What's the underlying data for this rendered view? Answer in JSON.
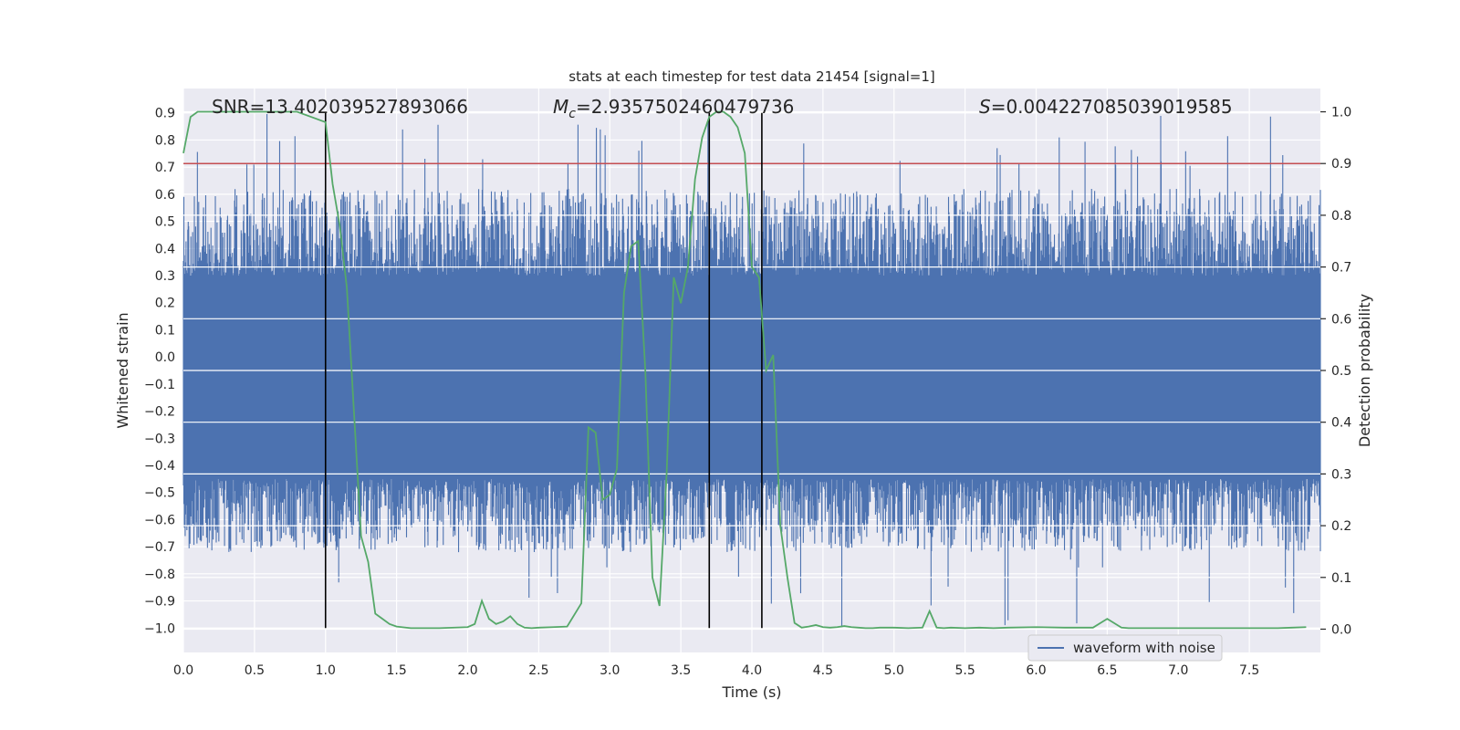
{
  "chart_data": {
    "type": "line",
    "title": "stats at each timestep for test data 21454 [signal=1]",
    "xlabel": "Time (s)",
    "ylabel": "Whitened strain",
    "y2label": "Detection probability",
    "xlim": [
      0.0,
      8.0
    ],
    "ylim": [
      -1.09,
      0.99
    ],
    "y2lim": [
      -0.045,
      1.045
    ],
    "x_ticks": [
      0.0,
      0.5,
      1.0,
      1.5,
      2.0,
      2.5,
      3.0,
      3.5,
      4.0,
      4.5,
      5.0,
      5.5,
      6.0,
      6.5,
      7.0,
      7.5
    ],
    "x_tick_labels": [
      "0.0",
      "0.5",
      "1.0",
      "1.5",
      "2.0",
      "2.5",
      "3.0",
      "3.5",
      "4.0",
      "4.5",
      "5.0",
      "5.5",
      "6.0",
      "6.5",
      "7.0",
      "7.5"
    ],
    "y_ticks": [
      -1.0,
      -0.9,
      -0.8,
      -0.7,
      -0.6,
      -0.5,
      -0.4,
      -0.3,
      -0.2,
      -0.1,
      0.0,
      0.1,
      0.2,
      0.3,
      0.4,
      0.5,
      0.6,
      0.7,
      0.8,
      0.9
    ],
    "y_tick_labels": [
      "−1.0",
      "−0.9",
      "−0.8",
      "−0.7",
      "−0.6",
      "−0.5",
      "−0.4",
      "−0.3",
      "−0.2",
      "−0.1",
      "0.0",
      "0.1",
      "0.2",
      "0.3",
      "0.4",
      "0.5",
      "0.6",
      "0.7",
      "0.8",
      "0.9"
    ],
    "y2_ticks": [
      0.0,
      0.1,
      0.2,
      0.3,
      0.4,
      0.5,
      0.6,
      0.7,
      0.8,
      0.9,
      1.0
    ],
    "y2_tick_labels": [
      "0.0",
      "0.1",
      "0.2",
      "0.3",
      "0.4",
      "0.5",
      "0.6",
      "0.7",
      "0.8",
      "0.9",
      "1.0"
    ],
    "grid": true,
    "legend": {
      "placement": "lower-right",
      "entries": [
        "waveform with noise"
      ]
    },
    "annotations": {
      "snr": "SNR=13.402039527893066",
      "mc_symbol": "M",
      "mc_sub": "c",
      "mc_value": "=2.9357502460479736",
      "s_symbol": "S",
      "s_value": "=0.004227085039019585"
    },
    "vertical_lines": [
      1.0,
      3.7,
      4.07
    ],
    "threshold_y2": 0.9,
    "series": [
      {
        "name": "waveform with noise",
        "kind": "noise",
        "axis": "y",
        "color": "#4c72b0",
        "x_range": [
          0.0,
          8.0
        ],
        "typical_upper": 0.3,
        "typical_lower": -0.45,
        "peak_upper": 0.9,
        "peak_lower": -1.0
      },
      {
        "kind": "probability",
        "axis": "y2",
        "color": "#55a868",
        "x": [
          0.0,
          0.05,
          0.1,
          0.2,
          0.3,
          0.5,
          0.7,
          0.8,
          0.9,
          1.0,
          1.05,
          1.1,
          1.15,
          1.2,
          1.25,
          1.3,
          1.35,
          1.4,
          1.45,
          1.5,
          1.6,
          1.8,
          2.0,
          2.05,
          2.1,
          2.15,
          2.2,
          2.25,
          2.3,
          2.35,
          2.4,
          2.45,
          2.5,
          2.6,
          2.7,
          2.8,
          2.85,
          2.9,
          2.95,
          3.0,
          3.05,
          3.1,
          3.15,
          3.2,
          3.25,
          3.3,
          3.35,
          3.4,
          3.45,
          3.5,
          3.55,
          3.6,
          3.65,
          3.7,
          3.75,
          3.8,
          3.85,
          3.9,
          3.95,
          4.0,
          4.05,
          4.1,
          4.15,
          4.2,
          4.25,
          4.3,
          4.35,
          4.4,
          4.45,
          4.5,
          4.55,
          4.6,
          4.65,
          4.7,
          4.75,
          4.8,
          4.85,
          4.9,
          5.0,
          5.1,
          5.2,
          5.25,
          5.3,
          5.35,
          5.4,
          5.5,
          5.6,
          5.7,
          5.8,
          6.0,
          6.2,
          6.4,
          6.5,
          6.6,
          6.65,
          6.7,
          6.75,
          6.8,
          6.9,
          7.0,
          7.2,
          7.4,
          7.6,
          7.7,
          7.8,
          7.9
        ],
        "y": [
          0.92,
          0.99,
          1.0,
          1.0,
          1.0,
          1.0,
          1.0,
          1.0,
          0.99,
          0.98,
          0.86,
          0.78,
          0.66,
          0.42,
          0.18,
          0.13,
          0.03,
          0.02,
          0.01,
          0.005,
          0.002,
          0.002,
          0.004,
          0.01,
          0.055,
          0.02,
          0.01,
          0.015,
          0.025,
          0.01,
          0.003,
          0.002,
          0.003,
          0.004,
          0.005,
          0.05,
          0.39,
          0.38,
          0.25,
          0.26,
          0.31,
          0.65,
          0.74,
          0.75,
          0.5,
          0.1,
          0.045,
          0.3,
          0.68,
          0.63,
          0.7,
          0.87,
          0.95,
          0.99,
          1.0,
          1.0,
          0.99,
          0.97,
          0.92,
          0.7,
          0.68,
          0.5,
          0.53,
          0.2,
          0.1,
          0.012,
          0.003,
          0.005,
          0.008,
          0.004,
          0.003,
          0.004,
          0.006,
          0.004,
          0.003,
          0.002,
          0.002,
          0.003,
          0.003,
          0.002,
          0.003,
          0.035,
          0.003,
          0.002,
          0.003,
          0.002,
          0.003,
          0.002,
          0.003,
          0.004,
          0.003,
          0.003,
          0.02,
          0.003,
          0.002,
          0.002,
          0.002,
          0.002,
          0.002,
          0.002,
          0.002,
          0.002,
          0.002,
          0.002,
          0.003,
          0.004
        ]
      }
    ]
  }
}
